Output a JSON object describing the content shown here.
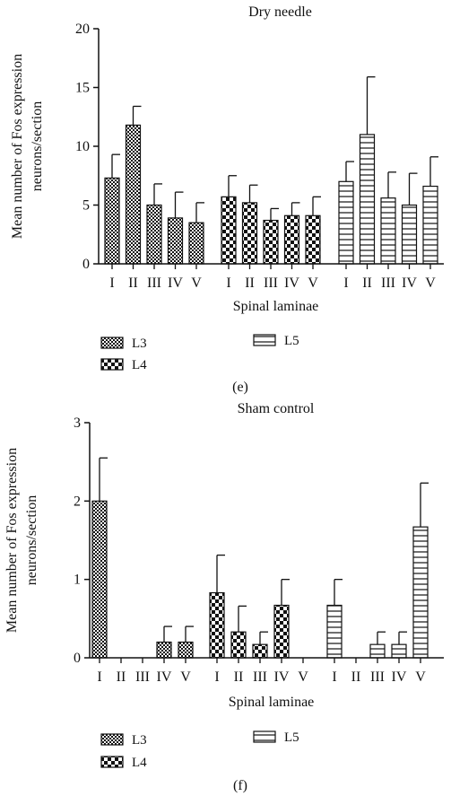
{
  "figure": {
    "panels": [
      {
        "caption": "(e)"
      },
      {
        "caption": "(f)"
      }
    ]
  },
  "chart_data": [
    {
      "type": "bar",
      "title": "Dry needle",
      "ylabel": "Mean number of Fos expression neurons/section",
      "ylabel_lines": [
        "Mean number of Fos expression",
        "neurons/section"
      ],
      "xlabel": "Spinal laminae",
      "ylim": [
        0,
        20
      ],
      "yticks": [
        0,
        5,
        10,
        15,
        20
      ],
      "categories": [
        "I",
        "II",
        "III",
        "IV",
        "V"
      ],
      "tick_labels_printed": [
        "I",
        "II",
        "III",
        "IV",
        "V",
        "I",
        "II",
        "III",
        "IV",
        "V",
        "I",
        "II",
        "III",
        "IV",
        "V"
      ],
      "legend_placement": "bottom",
      "series": [
        {
          "name": "L3",
          "pattern": "fine-check",
          "values": [
            7.3,
            11.8,
            5.0,
            3.9,
            3.5
          ],
          "errors": [
            2.0,
            1.6,
            1.8,
            2.2,
            1.7
          ]
        },
        {
          "name": "L4",
          "pattern": "coarse-check",
          "values": [
            5.7,
            5.2,
            3.7,
            4.1,
            4.1
          ],
          "errors": [
            1.8,
            1.5,
            1.0,
            1.1,
            1.6
          ]
        },
        {
          "name": "L5",
          "pattern": "horizontal-lines",
          "values": [
            7.0,
            11.0,
            5.6,
            5.0,
            6.6
          ],
          "errors": [
            1.7,
            4.9,
            2.2,
            2.7,
            2.5
          ]
        }
      ]
    },
    {
      "type": "bar",
      "title": "Sham control",
      "ylabel": "Mean number of Fos expression neurons/section",
      "ylabel_lines": [
        "Mean number of Fos expression",
        "neurons/section"
      ],
      "xlabel": "Spinal laminae",
      "ylim": [
        0,
        3
      ],
      "yticks": [
        0,
        1,
        2,
        3
      ],
      "categories": [
        "I",
        "II",
        "III",
        "IV",
        "V"
      ],
      "tick_labels_printed": [
        "I",
        "II",
        "III",
        "IV",
        "V",
        "I",
        "II",
        "III",
        "IV",
        "V",
        "I",
        "II",
        "III",
        "IV",
        "V"
      ],
      "legend_placement": "bottom",
      "series": [
        {
          "name": "L3",
          "pattern": "fine-check",
          "values": [
            2.0,
            0,
            0,
            0.2,
            0.2
          ],
          "errors": [
            0.55,
            0,
            0,
            0.2,
            0.2
          ]
        },
        {
          "name": "L4",
          "pattern": "coarse-check",
          "values": [
            0.83,
            0.33,
            0.17,
            0.67,
            0
          ],
          "errors": [
            0.48,
            0.33,
            0.16,
            0.33,
            0
          ]
        },
        {
          "name": "L5",
          "pattern": "horizontal-lines",
          "values": [
            0.67,
            0,
            0.17,
            0.17,
            1.67
          ],
          "errors": [
            0.33,
            0,
            0.16,
            0.16,
            0.56
          ]
        }
      ]
    }
  ]
}
